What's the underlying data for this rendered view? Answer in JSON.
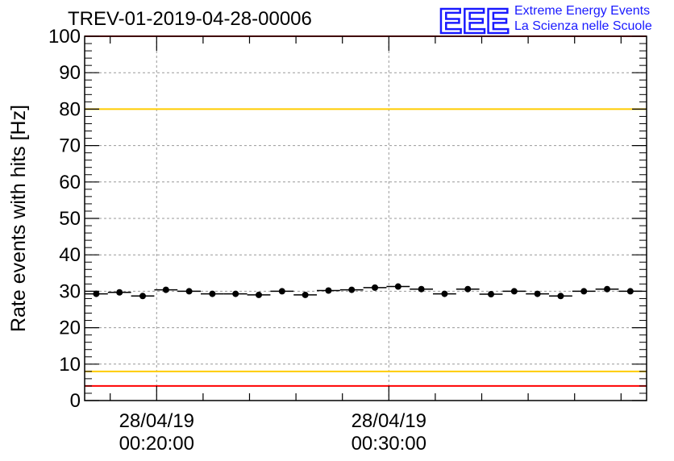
{
  "header": {
    "title": "TREV-01-2019-04-28-00006",
    "logo_text": "EEE",
    "logo_line1": "Extreme Energy Events",
    "logo_line2": "La Scienza nelle Scuole"
  },
  "colors": {
    "logo": "#1a1aff",
    "red_limit": "#ff0000",
    "yellow_limit": "#ffcc00",
    "points": "#000000",
    "grid": "#999999"
  },
  "chart_data": {
    "type": "scatter",
    "title": "TREV-01-2019-04-28-00006",
    "ylabel": "Rate events with hits [Hz]",
    "xlabel": "",
    "ylim": [
      0,
      100
    ],
    "xlim_minutes": [
      16.9,
      41.1
    ],
    "y_major_ticks": [
      0,
      10,
      20,
      30,
      40,
      50,
      60,
      70,
      80,
      90,
      100
    ],
    "x_tick_labels": [
      {
        "minute": 20,
        "date": "28/04/19",
        "time": "00:20:00"
      },
      {
        "minute": 30,
        "date": "28/04/19",
        "time": "00:30:00"
      }
    ],
    "grid": true,
    "reference_lines": [
      {
        "name": "upper red limit",
        "value": 100,
        "color": "red"
      },
      {
        "name": "upper yellow limit",
        "value": 80,
        "color": "yellow"
      },
      {
        "name": "lower yellow limit",
        "value": 8,
        "color": "yellow"
      },
      {
        "name": "lower red limit",
        "value": 4,
        "color": "red"
      }
    ],
    "bin_width_minutes": 1,
    "series": [
      {
        "name": "rate",
        "x_minutes": [
          17.4,
          18.4,
          19.4,
          20.4,
          21.4,
          22.4,
          23.4,
          24.4,
          25.4,
          26.4,
          27.4,
          28.4,
          29.4,
          30.4,
          31.4,
          32.4,
          33.4,
          34.4,
          35.4,
          36.4,
          37.4,
          38.4,
          39.4,
          40.4
        ],
        "values": [
          29.3,
          29.7,
          28.7,
          30.4,
          30.0,
          29.3,
          29.3,
          29.0,
          30.0,
          29.0,
          30.2,
          30.4,
          31.0,
          31.3,
          30.6,
          29.3,
          30.6,
          29.2,
          30.0,
          29.3,
          28.7,
          30.0,
          30.6,
          30.0
        ]
      }
    ]
  }
}
